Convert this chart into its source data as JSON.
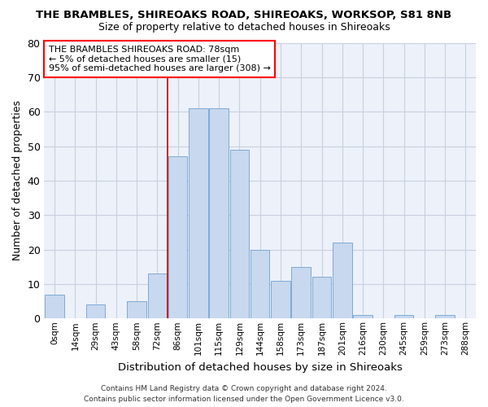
{
  "title": "THE BRAMBLES, SHIREOAKS ROAD, SHIREOAKS, WORKSOP, S81 8NB",
  "subtitle": "Size of property relative to detached houses in Shireoaks",
  "xlabel": "Distribution of detached houses by size in Shireoaks",
  "ylabel": "Number of detached properties",
  "bar_color": "#c8d8ee",
  "bar_edge_color": "#7eaad4",
  "bg_color": "#edf1f9",
  "grid_color": "#c8cfe0",
  "categories": [
    "0sqm",
    "14sqm",
    "29sqm",
    "43sqm",
    "58sqm",
    "72sqm",
    "86sqm",
    "101sqm",
    "115sqm",
    "129sqm",
    "144sqm",
    "158sqm",
    "173sqm",
    "187sqm",
    "201sqm",
    "216sqm",
    "230sqm",
    "245sqm",
    "259sqm",
    "273sqm",
    "288sqm"
  ],
  "values": [
    7,
    0,
    4,
    0,
    5,
    13,
    47,
    61,
    61,
    49,
    20,
    11,
    15,
    12,
    22,
    1,
    0,
    1,
    0,
    1,
    0
  ],
  "ylim": [
    0,
    80
  ],
  "yticks": [
    0,
    10,
    20,
    30,
    40,
    50,
    60,
    70,
    80
  ],
  "annotation_text": "THE BRAMBLES SHIREOAKS ROAD: 78sqm\n← 5% of detached houses are smaller (15)\n95% of semi-detached houses are larger (308) →",
  "marker_xval": 5.5,
  "marker_color": "#cc0000",
  "footer_line1": "Contains HM Land Registry data © Crown copyright and database right 2024.",
  "footer_line2": "Contains public sector information licensed under the Open Government Licence v3.0."
}
